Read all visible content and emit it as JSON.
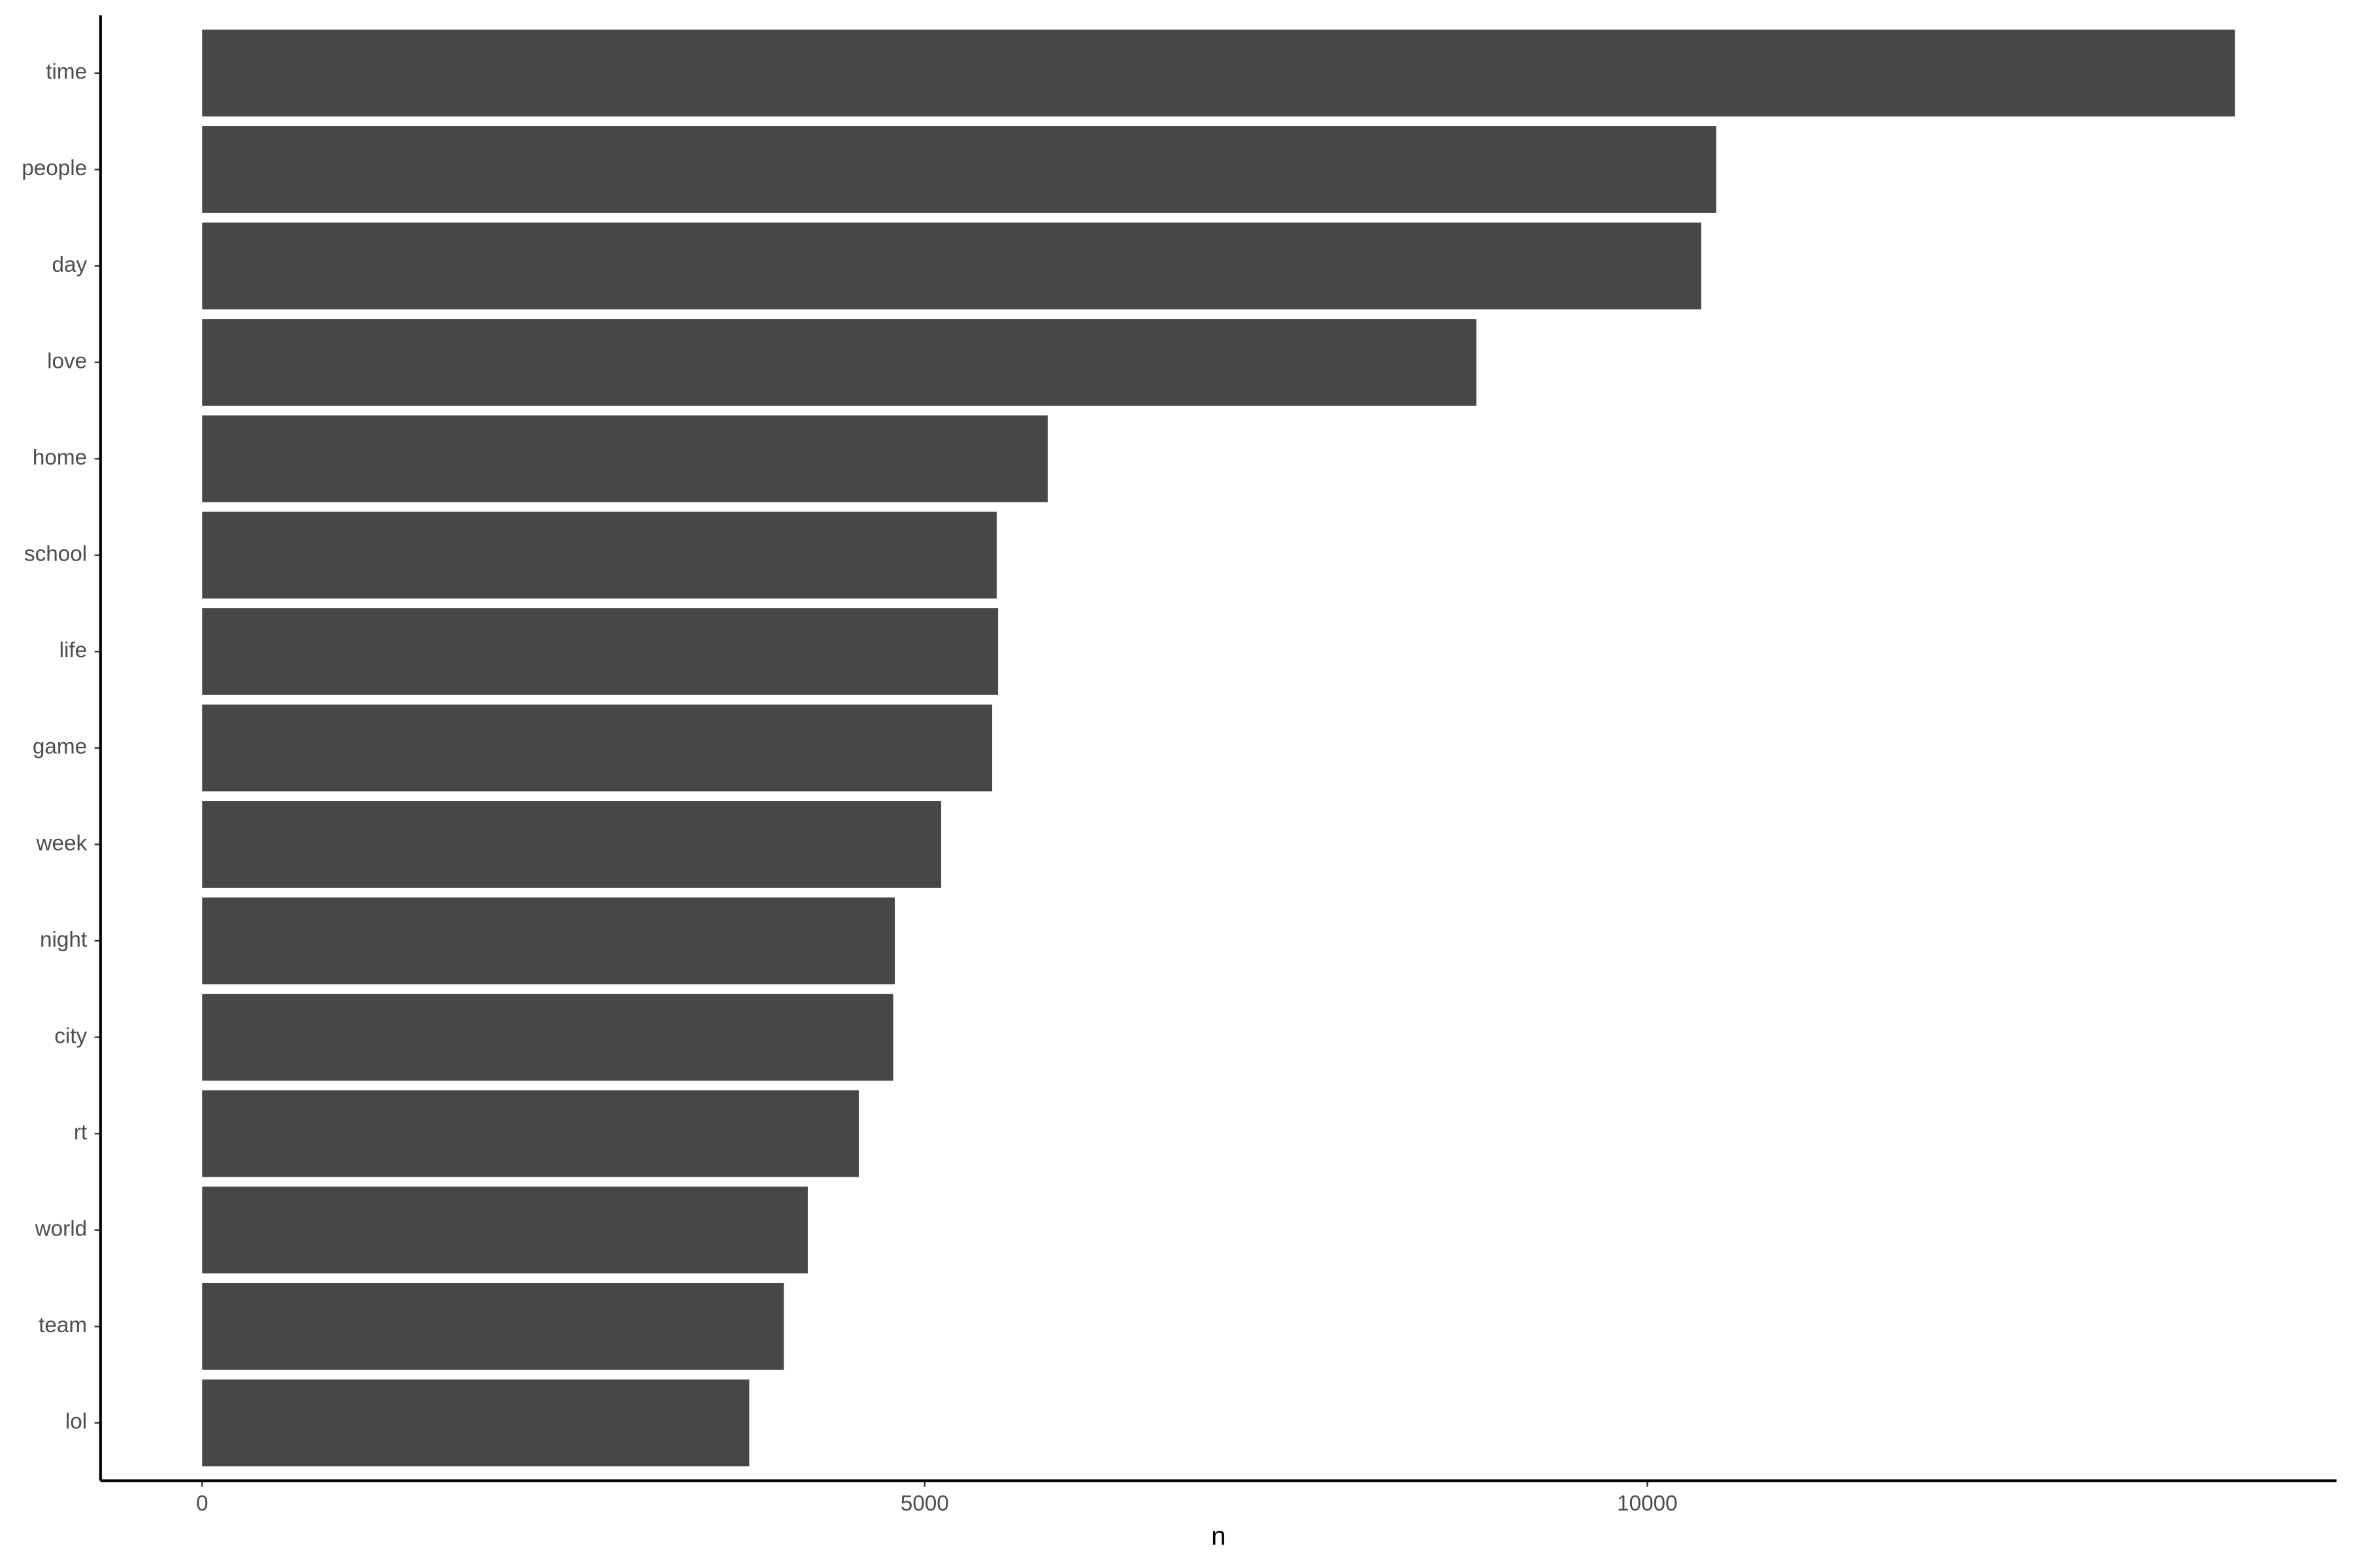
{
  "chart_data": {
    "type": "bar",
    "orientation": "horizontal",
    "x_label": "n",
    "categories": [
      "time",
      "people",
      "day",
      "love",
      "home",
      "school",
      "life",
      "game",
      "week",
      "night",
      "city",
      "rt",
      "world",
      "team",
      "lol"
    ],
    "values": [
      14066,
      10477,
      10373,
      8817,
      5851,
      5498,
      5508,
      5467,
      5114,
      4793,
      4782,
      4544,
      4191,
      4025,
      3786
    ],
    "color": "#474747",
    "xlim": [
      -703,
      14769
    ],
    "xticks": [
      0,
      5000,
      10000
    ],
    "grid": false
  }
}
